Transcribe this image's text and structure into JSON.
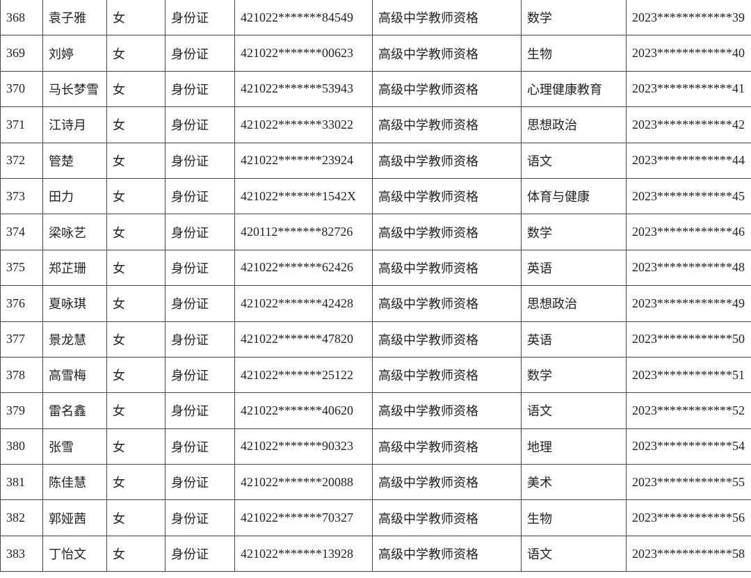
{
  "rows": [
    [
      "368",
      "袁子雅",
      "女",
      "身份证",
      "421022*******84549",
      "高级中学教师资格",
      "数学",
      "2023************39"
    ],
    [
      "369",
      "刘婷",
      "女",
      "身份证",
      "421022*******00623",
      "高级中学教师资格",
      "生物",
      "2023************40"
    ],
    [
      "370",
      "马长梦雪",
      "女",
      "身份证",
      "421022*******53943",
      "高级中学教师资格",
      "心理健康教育",
      "2023************41"
    ],
    [
      "371",
      "江诗月",
      "女",
      "身份证",
      "421022*******33022",
      "高级中学教师资格",
      "思想政治",
      "2023************42"
    ],
    [
      "372",
      "管楚",
      "女",
      "身份证",
      "421022*******23924",
      "高级中学教师资格",
      "语文",
      "2023************44"
    ],
    [
      "373",
      "田力",
      "女",
      "身份证",
      "421022*******1542X",
      "高级中学教师资格",
      "体育与健康",
      "2023************45"
    ],
    [
      "374",
      "梁咏艺",
      "女",
      "身份证",
      "420112*******82726",
      "高级中学教师资格",
      "数学",
      "2023************46"
    ],
    [
      "375",
      "郑芷珊",
      "女",
      "身份证",
      "421022*******62426",
      "高级中学教师资格",
      "英语",
      "2023************48"
    ],
    [
      "376",
      "夏咏琪",
      "女",
      "身份证",
      "421022*******42428",
      "高级中学教师资格",
      "思想政治",
      "2023************49"
    ],
    [
      "377",
      "景龙慧",
      "女",
      "身份证",
      "421022*******47820",
      "高级中学教师资格",
      "英语",
      "2023************50"
    ],
    [
      "378",
      "高雪梅",
      "女",
      "身份证",
      "421022*******25122",
      "高级中学教师资格",
      "数学",
      "2023************51"
    ],
    [
      "379",
      "雷名鑫",
      "女",
      "身份证",
      "421022*******40620",
      "高级中学教师资格",
      "语文",
      "2023************52"
    ],
    [
      "380",
      "张雪",
      "女",
      "身份证",
      "421022*******90323",
      "高级中学教师资格",
      "地理",
      "2023************54"
    ],
    [
      "381",
      "陈佳慧",
      "女",
      "身份证",
      "421022*******20088",
      "高级中学教师资格",
      "美术",
      "2023************55"
    ],
    [
      "382",
      "郭娅茜",
      "女",
      "身份证",
      "421022*******70327",
      "高级中学教师资格",
      "生物",
      "2023************56"
    ],
    [
      "383",
      "丁怡文",
      "女",
      "身份证",
      "421022*******13928",
      "高级中学教师资格",
      "语文",
      "2023************58"
    ]
  ]
}
